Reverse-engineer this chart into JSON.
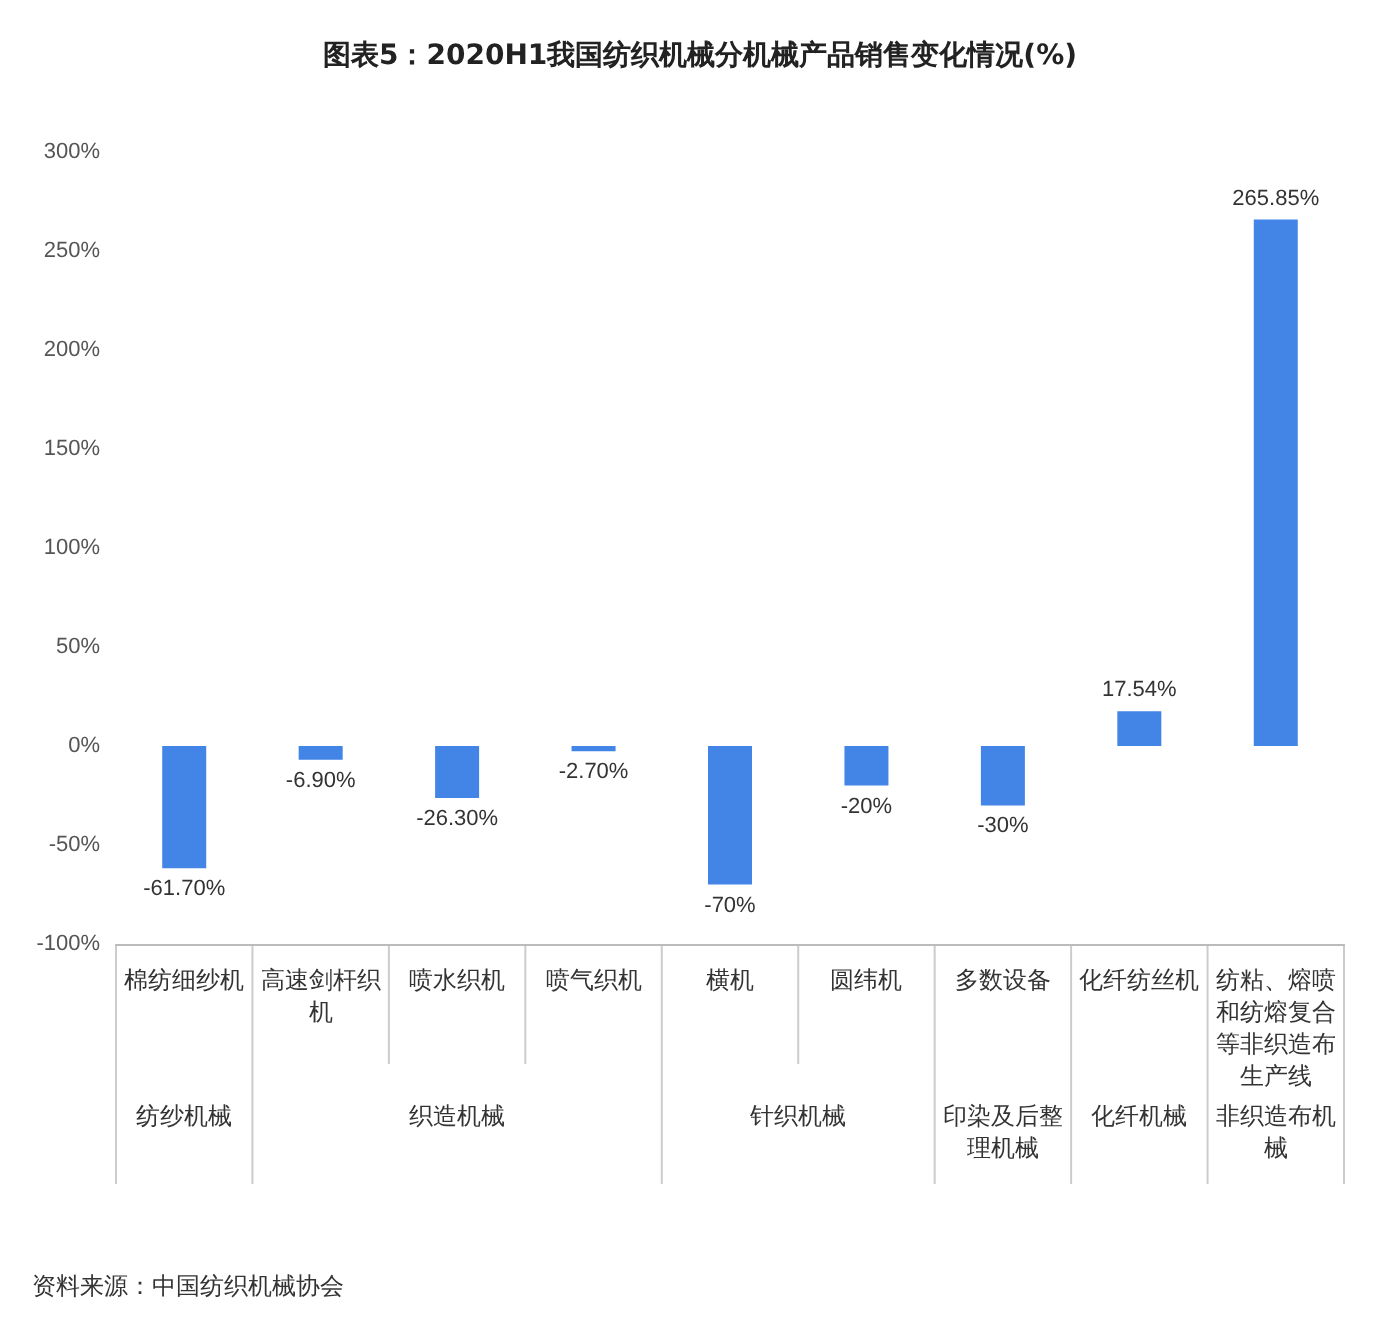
{
  "chart_data": {
    "type": "bar",
    "title": "图表5：2020H1我国纺织机械分机械产品销售变化情况(%)",
    "categories": [
      "棉纺细纱机",
      "高速剑杆织机",
      "喷水织机",
      "喷气织机",
      "横机",
      "圆纬机",
      "多数设备",
      "化纤纺丝机",
      "纺粘、熔喷和纺熔复合等非织造布生产线"
    ],
    "values": [
      -61.7,
      -6.9,
      -26.3,
      -2.7,
      -70,
      -20,
      -30,
      17.54,
      265.85
    ],
    "value_labels": [
      "-61.70%",
      "-6.90%",
      "-26.30%",
      "-2.70%",
      "-70%",
      "-20%",
      "-30%",
      "17.54%",
      "265.85%"
    ],
    "color": "#4285e6",
    "ylim": [
      -100,
      300
    ],
    "yticks": [
      {
        "value": -100,
        "label": "-100%"
      },
      {
        "value": -50,
        "label": "-50%"
      },
      {
        "value": 0,
        "label": "0%"
      },
      {
        "value": 50,
        "label": "50%"
      },
      {
        "value": 100,
        "label": "100%"
      },
      {
        "value": 150,
        "label": "150%"
      },
      {
        "value": 200,
        "label": "200%"
      },
      {
        "value": 250,
        "label": "250%"
      },
      {
        "value": 300,
        "label": "300%"
      }
    ],
    "grid": false,
    "annotations": [
      "纺纱机械",
      "织造机械",
      "针织机械",
      "印染及后整理机械",
      "化纤机械",
      "非织造布机械",
      "资料来源：中国纺织机械协会"
    ]
  }
}
